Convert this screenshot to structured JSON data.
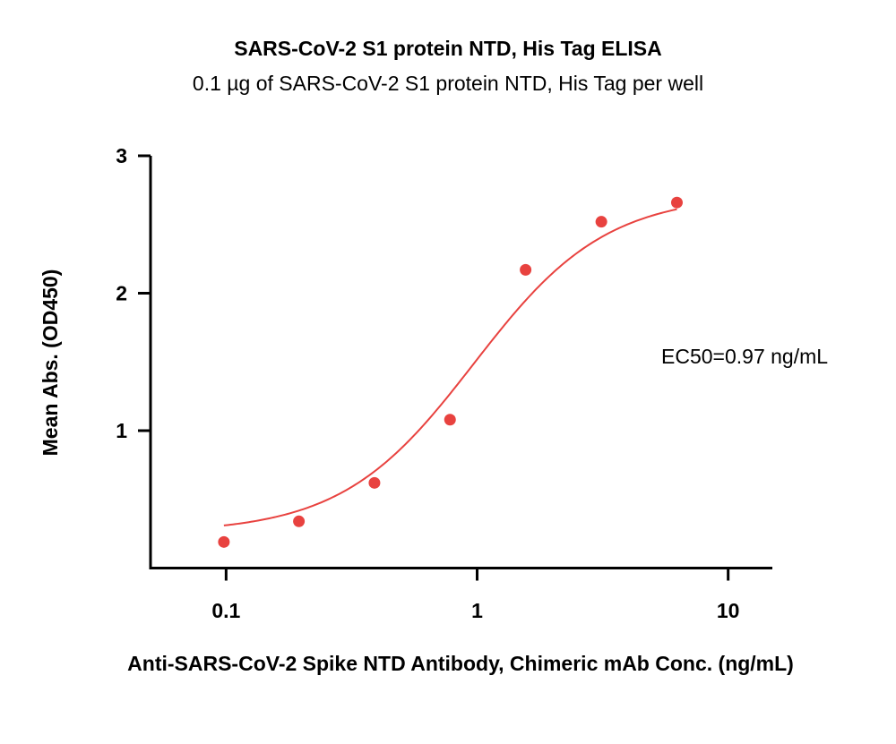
{
  "chart_data": {
    "type": "scatter",
    "title": "SARS-CoV-2 S1 protein NTD, His Tag ELISA",
    "subtitle": "0.1 µg of SARS-CoV-2 S1 protein NTD, His Tag per well",
    "xlabel": "Anti-SARS-CoV-2 Spike NTD Antibody, Chimeric mAb Conc. (ng/mL)",
    "ylabel": "Mean Abs. (OD450)",
    "xscale": "log",
    "xlim": [
      0.05,
      15
    ],
    "ylim": [
      0,
      3
    ],
    "xticks": [
      0.1,
      1,
      10
    ],
    "xtick_labels": [
      "0.1",
      "1",
      "10"
    ],
    "yticks": [
      1,
      2,
      3
    ],
    "ytick_labels": [
      "1",
      "2",
      "3"
    ],
    "grid": false,
    "legend": "none",
    "annotation": "EC50=0.97 ng/mL",
    "series": [
      {
        "color": "#e8423f",
        "x": [
          0.098,
          0.195,
          0.39,
          0.78,
          1.56,
          3.125,
          6.25
        ],
        "y": [
          0.19,
          0.34,
          0.62,
          1.08,
          2.17,
          2.52,
          2.66
        ]
      }
    ],
    "fit": {
      "type": "4PL",
      "bottom": 0.255,
      "top": 2.72,
      "ec50": 0.97,
      "hill": 1.65,
      "x_range": [
        0.098,
        6.25
      ],
      "color": "#e8423f"
    }
  }
}
